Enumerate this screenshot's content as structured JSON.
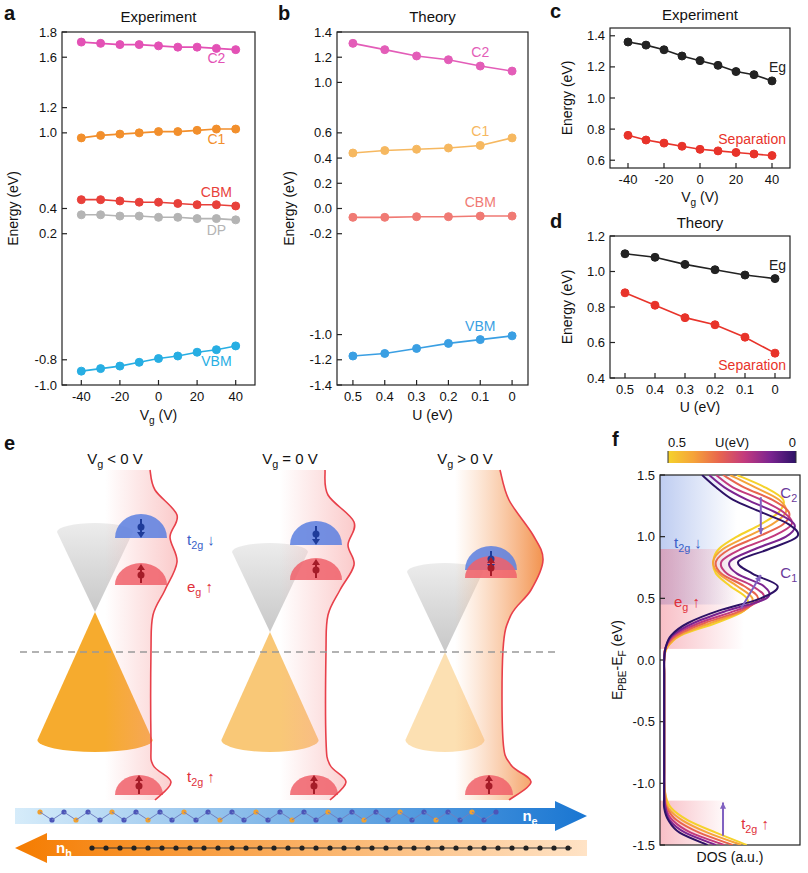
{
  "chart_data": [
    {
      "panel": "a",
      "type": "line",
      "title": "Experiment",
      "xlabel": [
        "V",
        "g",
        " (V)"
      ],
      "ylabel": "Energy (eV)",
      "x": [
        -40,
        -30,
        -20,
        -10,
        0,
        10,
        20,
        30,
        40
      ],
      "xlim": [
        -50,
        50
      ],
      "xticks": [
        -40,
        -20,
        0,
        20,
        40
      ],
      "ylim": [
        -1,
        1.8
      ],
      "yticks": [
        {
          "value": -1,
          "label": "-1.0"
        },
        -0.8,
        0.2,
        0.4,
        {
          "value": 1,
          "label": "1.0"
        },
        1.2,
        1.6,
        1.8
      ],
      "marker": "circle",
      "line_style": "solid",
      "series": [
        {
          "name": "C2",
          "color": "#e351b5",
          "values": [
            1.72,
            1.71,
            1.7,
            1.7,
            1.69,
            1.68,
            1.68,
            1.67,
            1.66
          ]
        },
        {
          "name": "C1",
          "color": "#f28f2c",
          "values": [
            0.96,
            0.98,
            0.99,
            1.0,
            1.01,
            1.01,
            1.02,
            1.03,
            1.03
          ]
        },
        {
          "name": "CBM",
          "color": "#e8403a",
          "values": [
            0.47,
            0.47,
            0.46,
            0.45,
            0.45,
            0.44,
            0.43,
            0.43,
            0.42
          ]
        },
        {
          "name": "DP",
          "color": "#b4b4b4",
          "values": [
            0.35,
            0.35,
            0.34,
            0.34,
            0.33,
            0.33,
            0.32,
            0.32,
            0.31
          ]
        },
        {
          "name": "VBM",
          "color": "#27aee3",
          "values": [
            -0.89,
            -0.87,
            -0.85,
            -0.82,
            -0.79,
            -0.77,
            -0.74,
            -0.72,
            -0.69
          ]
        }
      ]
    },
    {
      "panel": "b",
      "type": "line",
      "title": "Theory",
      "xlabel": "U (eV)",
      "ylabel": "Energy (eV)",
      "x": [
        0.5,
        0.4,
        0.3,
        0.2,
        0.1,
        0
      ],
      "xlim": [
        0.55,
        -0.05
      ],
      "xticks": [
        0.5,
        0.4,
        0.3,
        0.2,
        0.1,
        0
      ],
      "ylim": [
        -1.4,
        1.4
      ],
      "yticks": [
        -1.4,
        -1.2,
        {
          "value": -1,
          "label": "-1.0"
        },
        -0.2,
        {
          "value": 0,
          "label": "0.0"
        },
        0.2,
        0.4,
        0.6,
        {
          "value": 1,
          "label": "1.0"
        },
        1.2,
        1.4
      ],
      "marker": "circle",
      "line_style": "solid",
      "series": [
        {
          "name": "C2",
          "color": "#e35db8",
          "values": [
            1.31,
            1.26,
            1.21,
            1.18,
            1.13,
            1.09
          ]
        },
        {
          "name": "C1",
          "color": "#f6b860",
          "values": [
            0.44,
            0.46,
            0.47,
            0.48,
            0.5,
            0.56
          ]
        },
        {
          "name": "CBM",
          "color": "#f07a74",
          "values": [
            -0.07,
            -0.07,
            -0.065,
            -0.065,
            -0.06,
            -0.06
          ]
        },
        {
          "name": "VBM",
          "color": "#3a9fe3",
          "values": [
            -1.17,
            -1.15,
            -1.11,
            -1.07,
            -1.04,
            -1.01
          ]
        }
      ]
    },
    {
      "panel": "c",
      "type": "line",
      "title": "Experiment",
      "xlabel": [
        "V",
        "g",
        " (V)"
      ],
      "ylabel": "Energy (eV)",
      "x": [
        -40,
        -30,
        -20,
        -10,
        0,
        10,
        20,
        30,
        40
      ],
      "xlim": [
        -50,
        50
      ],
      "xticks": [
        -40,
        -20,
        0,
        20,
        40
      ],
      "ylim": [
        0.55,
        1.45
      ],
      "yticks": [
        0.6,
        0.8,
        {
          "value": 1,
          "label": "1.0"
        },
        1.2,
        1.4
      ],
      "marker": "circle",
      "line_style": "solid",
      "series": [
        {
          "name": "Eg",
          "color": "#222222",
          "values": [
            1.36,
            1.34,
            1.31,
            1.27,
            1.24,
            1.21,
            1.17,
            1.15,
            1.11
          ]
        },
        {
          "name": "Separation",
          "color": "#e8332a",
          "values": [
            0.76,
            0.73,
            0.71,
            0.69,
            0.67,
            0.66,
            0.65,
            0.64,
            0.63
          ]
        }
      ]
    },
    {
      "panel": "d",
      "type": "line",
      "title": "Theory",
      "xlabel": "U (eV)",
      "ylabel": "Energy (eV)",
      "x": [
        0.5,
        0.4,
        0.3,
        0.2,
        0.1,
        0
      ],
      "xlim": [
        0.55,
        -0.05
      ],
      "xticks": [
        0.5,
        0.4,
        0.3,
        0.2,
        0.1,
        0
      ],
      "ylim": [
        0.4,
        1.2
      ],
      "yticks": [
        0.4,
        0.6,
        0.8,
        {
          "value": 1,
          "label": "1.0"
        },
        1.2
      ],
      "marker": "circle",
      "line_style": "solid",
      "series": [
        {
          "name": "Eg",
          "color": "#222222",
          "values": [
            1.1,
            1.08,
            1.04,
            1.01,
            0.98,
            0.96
          ]
        },
        {
          "name": "Separation",
          "color": "#e8332a",
          "values": [
            0.88,
            0.81,
            0.74,
            0.7,
            0.63,
            0.54
          ]
        }
      ]
    },
    {
      "panel": "f",
      "type": "line",
      "orientation": "horizontal",
      "tick_labels": "x",
      "line_style": "solid",
      "xlabel": [
        "E",
        "PBE",
        "-E",
        "F",
        " (eV)"
      ],
      "ylabel": "DOS (a.u.)",
      "x": [
        -1.5,
        -1.4,
        -1.3,
        -1.2,
        -1.1,
        -1,
        -0.9,
        -0.8,
        -0.7,
        -0.6,
        -0.5,
        -0.4,
        -0.3,
        -0.2,
        -0.1,
        0,
        0.1,
        0.2,
        0.3,
        0.4,
        0.5,
        0.6,
        0.7,
        0.8,
        0.9,
        1,
        1.1,
        1.2,
        1.3,
        1.4,
        1.5
      ],
      "xlim": [
        -1.5,
        1.5
      ],
      "xticks": [
        -1.5,
        {
          "value": -1,
          "label": "-1.0"
        },
        -0.5,
        {
          "value": 0,
          "label": "0.0"
        },
        0.5,
        {
          "value": 1,
          "label": "1.0"
        },
        1.5
      ],
      "ylim": [
        0,
        1
      ],
      "colorbar": {
        "label": "U(eV)",
        "range": [
          0.5,
          0
        ],
        "ticks": [
          0.5,
          0
        ]
      },
      "annotations": [
        {
          "text": [
            "t",
            "2g",
            " ↓"
          ],
          "color": "#3a5fc8"
        },
        {
          "text": [
            "e",
            "g",
            " ↑"
          ],
          "color": "#e0303a"
        },
        {
          "text": [
            "t",
            "2g",
            " ↑"
          ],
          "color": "#e0303a"
        },
        {
          "text": [
            "C",
            "2"
          ],
          "color": "#6a3a9a"
        },
        {
          "text": [
            "C",
            "1"
          ],
          "color": "#6a3a9a"
        }
      ],
      "series": [
        {
          "color": "#f5d22b",
          "values": [
            0.62,
            0.4,
            0.2,
            0.08,
            0.04,
            0.03,
            0.03,
            0.03,
            0.03,
            0.03,
            0.03,
            0.03,
            0.03,
            0.03,
            0.03,
            0.03,
            0.05,
            0.15,
            0.4,
            0.6,
            0.62,
            0.5,
            0.4,
            0.38,
            0.42,
            0.55,
            0.72,
            0.85,
            0.88,
            0.75,
            0.55
          ]
        },
        {
          "color": "#f5a33a",
          "values": [
            0.58,
            0.34,
            0.16,
            0.06,
            0.04,
            0.03,
            0.03,
            0.03,
            0.03,
            0.03,
            0.03,
            0.03,
            0.03,
            0.03,
            0.03,
            0.03,
            0.05,
            0.14,
            0.36,
            0.6,
            0.66,
            0.55,
            0.42,
            0.38,
            0.45,
            0.62,
            0.8,
            0.9,
            0.85,
            0.68,
            0.5
          ]
        },
        {
          "color": "#e8654e",
          "values": [
            0.52,
            0.28,
            0.12,
            0.05,
            0.03,
            0.03,
            0.03,
            0.03,
            0.03,
            0.03,
            0.03,
            0.03,
            0.03,
            0.03,
            0.03,
            0.03,
            0.04,
            0.12,
            0.32,
            0.58,
            0.7,
            0.6,
            0.44,
            0.4,
            0.5,
            0.7,
            0.88,
            0.92,
            0.8,
            0.6,
            0.45
          ]
        },
        {
          "color": "#c23a7e",
          "values": [
            0.46,
            0.22,
            0.09,
            0.04,
            0.03,
            0.03,
            0.03,
            0.03,
            0.03,
            0.03,
            0.03,
            0.03,
            0.03,
            0.03,
            0.03,
            0.03,
            0.04,
            0.1,
            0.28,
            0.54,
            0.74,
            0.66,
            0.48,
            0.44,
            0.58,
            0.8,
            0.94,
            0.88,
            0.72,
            0.52,
            0.4
          ]
        },
        {
          "color": "#7b2490",
          "values": [
            0.4,
            0.18,
            0.07,
            0.04,
            0.03,
            0.03,
            0.03,
            0.03,
            0.03,
            0.03,
            0.03,
            0.03,
            0.03,
            0.03,
            0.03,
            0.03,
            0.04,
            0.09,
            0.24,
            0.48,
            0.76,
            0.74,
            0.55,
            0.5,
            0.68,
            0.9,
            0.96,
            0.82,
            0.62,
            0.46,
            0.35
          ]
        },
        {
          "color": "#2d1266",
          "values": [
            0.34,
            0.14,
            0.06,
            0.03,
            0.03,
            0.03,
            0.03,
            0.03,
            0.03,
            0.03,
            0.03,
            0.03,
            0.03,
            0.03,
            0.03,
            0.03,
            0.04,
            0.08,
            0.2,
            0.42,
            0.72,
            0.84,
            0.66,
            0.56,
            0.78,
            0.98,
            0.92,
            0.72,
            0.52,
            0.4,
            0.3
          ]
        }
      ]
    }
  ],
  "diagram": {
    "panel": "e",
    "columns": [
      [
        "V",
        "g",
        " < 0 V"
      ],
      [
        "V",
        "g",
        " = 0 V"
      ],
      [
        "V",
        "g",
        " > 0 V"
      ]
    ],
    "states": [
      [
        "t",
        "2g",
        " ↓"
      ],
      [
        "e",
        "g",
        " ↑"
      ],
      [
        "t",
        "2g",
        " ↑"
      ]
    ],
    "carriers": [
      [
        "n",
        "e"
      ],
      [
        "n",
        "h"
      ]
    ]
  }
}
